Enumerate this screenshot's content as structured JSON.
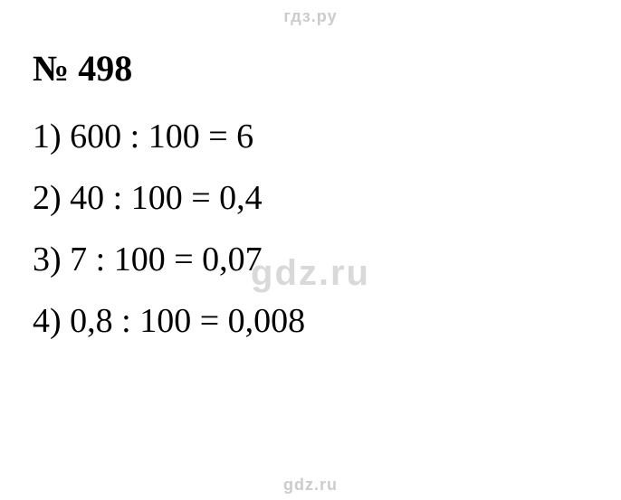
{
  "watermarks": {
    "top": "гдз.ру",
    "center": "gdz.ru",
    "bottom": "gdz.ru",
    "top_fontsize": 18,
    "center_fontsize": 40,
    "bottom_fontsize": 18,
    "top_color": "#cccccc",
    "center_color": "#d9d9d9",
    "bottom_color": "#cccccc"
  },
  "title": {
    "text": "№ 498",
    "fontsize": 40,
    "fontweight": "bold",
    "color": "#000000"
  },
  "lines": [
    {
      "text": "1) 600 : 100 = 6"
    },
    {
      "text": "2) 40 : 100 = 0,4"
    },
    {
      "text": "3) 7 : 100 = 0,07"
    },
    {
      "text": "4) 0,8 : 100 = 0,008"
    }
  ],
  "line_fontsize": 38,
  "line_color": "#000000",
  "background_color": "#ffffff"
}
